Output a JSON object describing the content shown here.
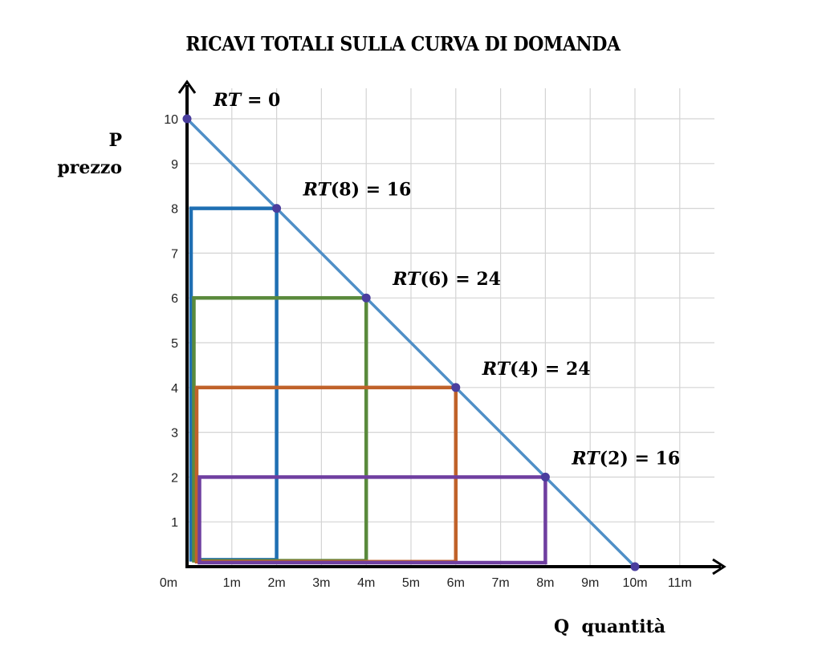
{
  "chart_data": {
    "type": "line",
    "title": "RICAVI TOTALI SULLA CURVA DI DOMANDA",
    "ylabel": [
      "P",
      "prezzo"
    ],
    "xlabel": "Q  quantità",
    "xlim": [
      0,
      11.5
    ],
    "ylim": [
      0,
      10.7
    ],
    "grid": true,
    "x_ticks": [
      "0m",
      "1m",
      "2m",
      "3m",
      "4m",
      "5m",
      "6m",
      "7m",
      "8m",
      "9m",
      "10m",
      "11m"
    ],
    "y_ticks": [
      "1",
      "2",
      "3",
      "4",
      "5",
      "6",
      "7",
      "8",
      "9",
      "10"
    ],
    "demand_curve": {
      "name": "Domanda",
      "color": "#4f8fc7",
      "points": [
        [
          0,
          10
        ],
        [
          10,
          0
        ]
      ]
    },
    "marked_points": [
      {
        "q": 0,
        "p": 10,
        "label_prefix": "RT",
        "label_arg": "",
        "label_value": "0"
      },
      {
        "q": 2,
        "p": 8,
        "label_prefix": "RT",
        "label_arg": "(8)",
        "label_value": "16"
      },
      {
        "q": 4,
        "p": 6,
        "label_prefix": "RT",
        "label_arg": "(6)",
        "label_value": "24"
      },
      {
        "q": 6,
        "p": 4,
        "label_prefix": "RT",
        "label_arg": "(4)",
        "label_value": "24"
      },
      {
        "q": 8,
        "p": 2,
        "label_prefix": "RT",
        "label_arg": "(2)",
        "label_value": "16"
      },
      {
        "q": 10,
        "p": 0
      }
    ],
    "revenue_rectangles": [
      {
        "q": 2,
        "p": 8,
        "revenue": 16,
        "color": "#1f6fb3"
      },
      {
        "q": 4,
        "p": 6,
        "revenue": 24,
        "color": "#5a8a3c"
      },
      {
        "q": 6,
        "p": 4,
        "revenue": 24,
        "color": "#c0622a"
      },
      {
        "q": 8,
        "p": 2,
        "revenue": 16,
        "color": "#6f3fa0"
      }
    ],
    "point_color": "#4a3e9e",
    "grid_color": "#d4d4d4",
    "axis_color": "#000000"
  },
  "labels": {
    "title": "RICAVI TOTALI SULLA CURVA DI DOMANDA",
    "y_axis_letter": "P",
    "y_axis_word": "prezzo",
    "x_axis": "Q  quantità",
    "equals": "="
  }
}
